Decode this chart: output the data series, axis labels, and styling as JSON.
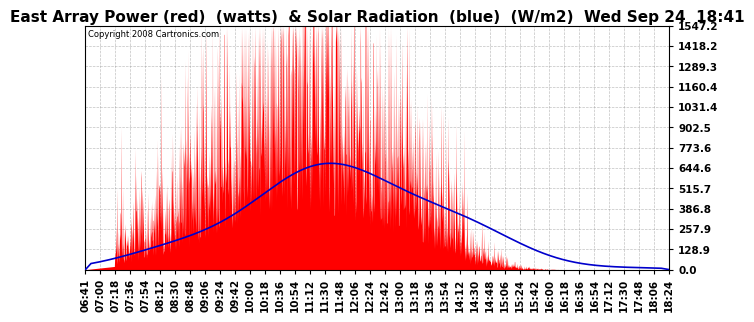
{
  "title": "East Array Power (red)  (watts)  & Solar Radiation  (blue)  (W/m2)  Wed Sep 24  18:41",
  "copyright": "Copyright 2008 Cartronics.com",
  "y_ticks": [
    0.0,
    128.9,
    257.9,
    386.8,
    515.7,
    644.6,
    773.6,
    902.5,
    1031.4,
    1160.4,
    1289.3,
    1418.2,
    1547.2
  ],
  "ylim": [
    0.0,
    1547.2
  ],
  "x_labels": [
    "06:41",
    "07:00",
    "07:18",
    "07:36",
    "07:54",
    "08:12",
    "08:30",
    "08:48",
    "09:06",
    "09:24",
    "09:42",
    "10:00",
    "10:18",
    "10:36",
    "10:54",
    "11:12",
    "11:30",
    "11:48",
    "12:06",
    "12:24",
    "12:42",
    "13:00",
    "13:18",
    "13:36",
    "13:54",
    "14:12",
    "14:30",
    "14:48",
    "15:06",
    "15:24",
    "15:42",
    "16:00",
    "16:18",
    "16:36",
    "16:54",
    "17:12",
    "17:30",
    "17:48",
    "18:06",
    "18:24"
  ],
  "bg_color": "#ffffff",
  "plot_bg_color": "#ffffff",
  "grid_color": "#999999",
  "fill_color": "#ff0000",
  "line_color_blue": "#0000cc",
  "title_fontsize": 11,
  "tick_fontsize": 7.5
}
